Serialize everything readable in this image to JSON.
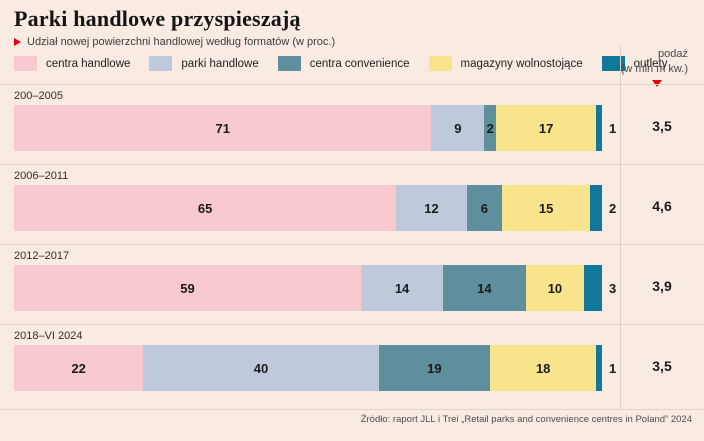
{
  "title": "Parki handlowe przyspieszają",
  "subtitle": "Udział nowej powierzchni handlowej według formatów (w proc.)",
  "supply_header": {
    "line1": "podaż",
    "line2": "(w mln m kw.)"
  },
  "source": "Źródło: raport JLL i Trei „Retail parks and convenience centres in Poland” 2024",
  "colors": {
    "background": "#f9ebe2",
    "accent_red": "#e2000f",
    "separator": "#ddd3c7"
  },
  "chart_data": {
    "type": "bar",
    "stacked": true,
    "orientation": "horizontal",
    "unit": "percent",
    "xlim": [
      0,
      100
    ],
    "categories": [
      "200–2005",
      "2006–2011",
      "2012–2017",
      "2018–VI 2024"
    ],
    "series": [
      {
        "name": "centra handlowe",
        "color": "#f8c9ce",
        "values": [
          71,
          65,
          59,
          22
        ]
      },
      {
        "name": "parki handlowe",
        "color": "#bec9dc",
        "values": [
          9,
          12,
          14,
          40
        ]
      },
      {
        "name": "centra convenience",
        "color": "#5f8e9c",
        "values": [
          2,
          6,
          14,
          19
        ]
      },
      {
        "name": "magazyny wolnostojące",
        "color": "#f8e48c",
        "values": [
          17,
          15,
          10,
          18
        ]
      },
      {
        "name": "outlety",
        "color": "#11779b",
        "values": [
          1,
          2,
          3,
          1
        ]
      }
    ],
    "supply_values": [
      "3,5",
      "4,6",
      "3,9",
      "3,5"
    ],
    "legend_position": "top",
    "grid": false
  }
}
